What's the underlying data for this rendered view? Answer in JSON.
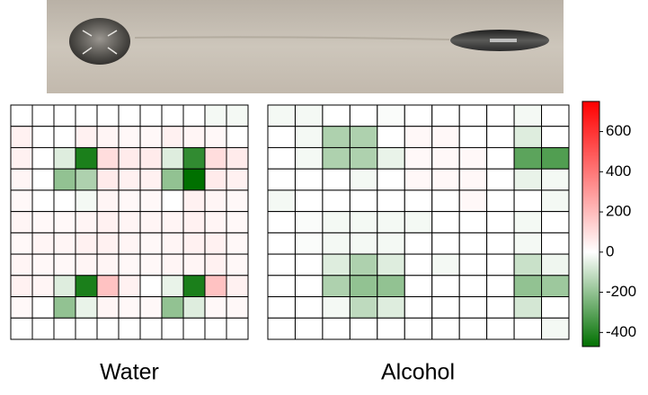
{
  "chart_data": [
    {
      "type": "heatmap",
      "title": "Water",
      "values": [
        [
          0,
          0,
          0,
          0,
          0,
          0,
          0,
          0,
          0,
          -20,
          -20
        ],
        [
          40,
          0,
          0,
          40,
          30,
          20,
          20,
          40,
          30,
          20,
          0
        ],
        [
          40,
          0,
          -60,
          -420,
          100,
          60,
          60,
          -60,
          -380,
          100,
          60
        ],
        [
          30,
          0,
          -200,
          -150,
          60,
          40,
          40,
          -200,
          -470,
          60,
          40
        ],
        [
          20,
          0,
          0,
          -20,
          30,
          20,
          20,
          0,
          40,
          30,
          20
        ],
        [
          30,
          20,
          20,
          30,
          40,
          30,
          30,
          30,
          40,
          30,
          20
        ],
        [
          20,
          30,
          30,
          40,
          40,
          30,
          20,
          30,
          40,
          40,
          20
        ],
        [
          30,
          20,
          20,
          30,
          30,
          20,
          20,
          30,
          30,
          40,
          20
        ],
        [
          40,
          30,
          -60,
          -420,
          180,
          40,
          0,
          -40,
          -420,
          180,
          40
        ],
        [
          20,
          0,
          -200,
          -40,
          30,
          20,
          20,
          -200,
          -60,
          20,
          20
        ],
        [
          0,
          0,
          0,
          0,
          0,
          0,
          0,
          0,
          0,
          0,
          0
        ]
      ]
    },
    {
      "type": "heatmap",
      "title": "Alcohol",
      "values": [
        [
          -20,
          -20,
          0,
          0,
          -10,
          0,
          0,
          0,
          0,
          -20,
          0
        ],
        [
          0,
          -20,
          -150,
          -150,
          0,
          20,
          20,
          0,
          0,
          -60,
          0
        ],
        [
          0,
          -20,
          -150,
          -150,
          -40,
          20,
          20,
          20,
          0,
          -300,
          -320
        ],
        [
          0,
          0,
          0,
          -20,
          0,
          20,
          20,
          20,
          0,
          -40,
          -20
        ],
        [
          -20,
          0,
          0,
          0,
          0,
          0,
          0,
          20,
          0,
          0,
          -20
        ],
        [
          0,
          -10,
          -20,
          -20,
          -20,
          -20,
          0,
          0,
          0,
          -20,
          0
        ],
        [
          0,
          -10,
          -20,
          -20,
          -20,
          0,
          0,
          0,
          0,
          -20,
          0
        ],
        [
          0,
          0,
          -60,
          -150,
          -60,
          0,
          -20,
          0,
          0,
          -100,
          -30
        ],
        [
          0,
          0,
          -150,
          -200,
          -200,
          0,
          0,
          0,
          0,
          -200,
          -180
        ],
        [
          0,
          0,
          -20,
          -120,
          -60,
          0,
          0,
          0,
          0,
          -80,
          0
        ],
        [
          0,
          0,
          0,
          0,
          0,
          0,
          0,
          0,
          0,
          0,
          -20
        ]
      ]
    }
  ],
  "colorbar": {
    "vmin": -470,
    "vcenter": 0,
    "vmax": 750,
    "ticks": [
      600,
      400,
      200,
      0,
      -200,
      -400
    ],
    "colors": [
      "#007000",
      "#ffffff",
      "#ff0000"
    ]
  }
}
